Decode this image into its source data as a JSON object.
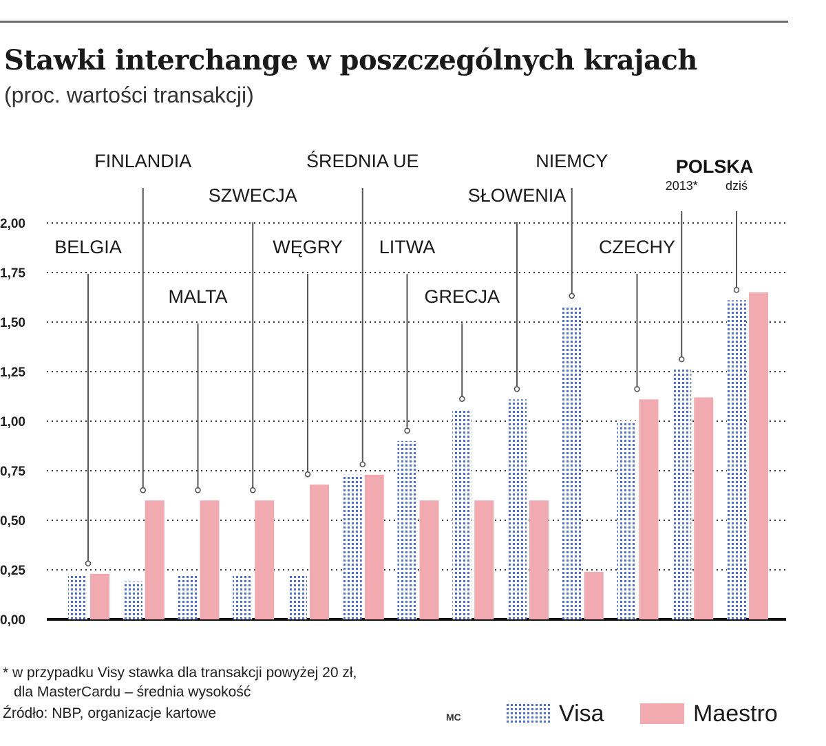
{
  "header": {
    "title": "Stawki interchange w poszczególnych krajach",
    "subtitle": "(proc. wartości transakcji)"
  },
  "footnote": {
    "line1": "* w przypadku Visy stawka dla transakcji powyżej 20 zł,",
    "line2": "dla MasterCardu – średnia wysokość",
    "source": "Źródło: NBP, organizacje kartowe",
    "credit": "MC"
  },
  "colors": {
    "visa_dots": "#4a6ee0",
    "maestro": "#f0aab0",
    "axis": "#111111",
    "grid": "#333333"
  },
  "chart_data": {
    "type": "bar",
    "categories": [
      "BELGIA",
      "FINLANDIA",
      "MALTA",
      "SZWECJA",
      "WĘGRY",
      "ŚREDNIA UE",
      "LITWA",
      "GRECJA",
      "SŁOWENIA",
      "NIEMCY",
      "CZECHY",
      "POLSKA 2013*",
      "POLSKA dziś"
    ],
    "category_labels": [
      {
        "text": "BELGIA",
        "anchor": "maestro"
      },
      {
        "text": "FINLANDIA",
        "anchor": "maestro"
      },
      {
        "text": "MALTA",
        "anchor": "maestro"
      },
      {
        "text": "SZWECJA",
        "anchor": "maestro"
      },
      {
        "text": "WĘGRY",
        "anchor": "maestro"
      },
      {
        "text": "ŚREDNIA UE",
        "anchor": "maestro"
      },
      {
        "text": "LITWA",
        "anchor": "visa"
      },
      {
        "text": "GRECJA",
        "anchor": "visa"
      },
      {
        "text": "SŁOWENIA",
        "anchor": "visa"
      },
      {
        "text": "NIEMCY",
        "anchor": "visa"
      },
      {
        "text": "CZECHY",
        "anchor": "maestro"
      },
      {
        "text": "2013*",
        "anchor": "visa"
      },
      {
        "text": "dziś",
        "anchor": "visa"
      }
    ],
    "group_label": "POLSKA",
    "series": [
      {
        "name": "Visa",
        "values": [
          0.22,
          0.19,
          0.22,
          0.22,
          0.22,
          0.73,
          0.9,
          1.06,
          1.11,
          1.58,
          1.0,
          1.26,
          1.61
        ]
      },
      {
        "name": "Maestro",
        "values": [
          0.23,
          0.6,
          0.6,
          0.6,
          0.68,
          0.73,
          0.6,
          0.6,
          0.6,
          0.24,
          1.11,
          1.12,
          1.65
        ]
      }
    ],
    "y_ticks": [
      "0,00",
      "0,25",
      "0,50",
      "0,75",
      "1,00",
      "1,25",
      "1,50",
      "1,75",
      "2,00"
    ],
    "ylim": [
      0,
      2
    ],
    "grid": true,
    "legend": {
      "position": "bottom-right",
      "visa_label": "Visa",
      "maestro_label": "Maestro"
    }
  }
}
